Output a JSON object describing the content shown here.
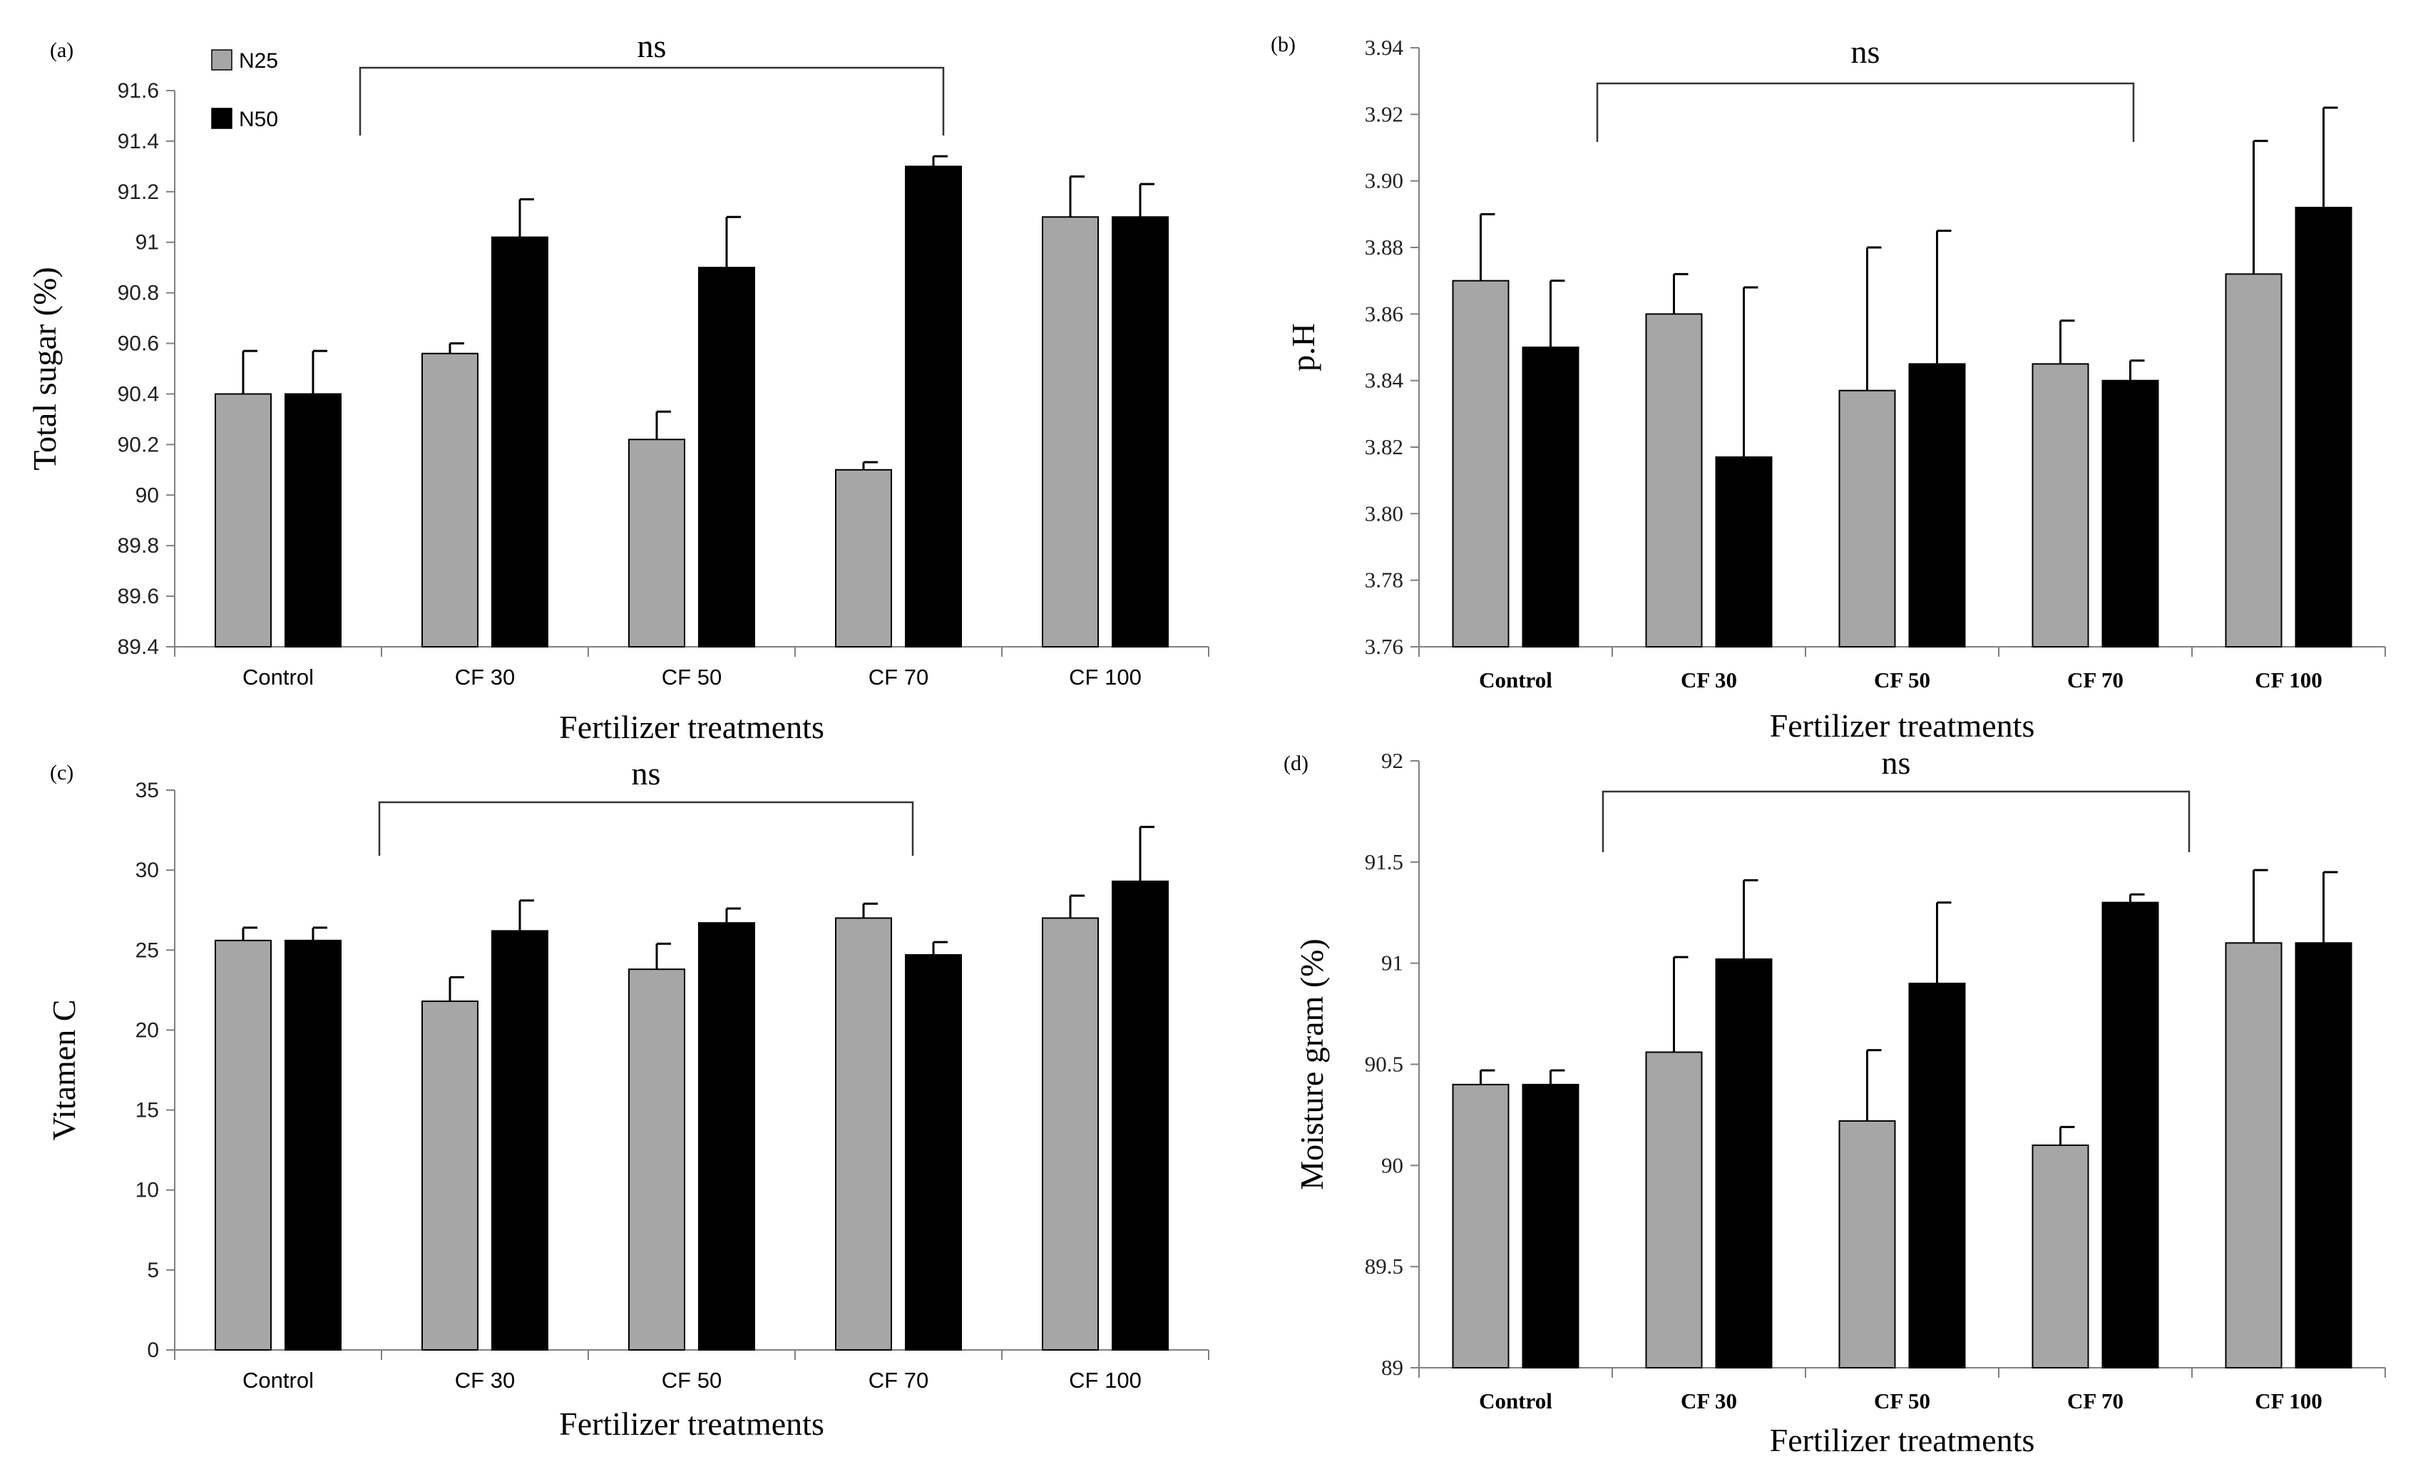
{
  "legend": {
    "entries": [
      {
        "name": "N25",
        "color": "#a6a6a6"
      },
      {
        "name": "N50",
        "color": "#000000"
      }
    ],
    "placement": "top-left of panel (a)"
  },
  "chart_data": [
    {
      "type": "bar",
      "panel_label": "(a)",
      "title": "",
      "xlabel": "Fertilizer treatments",
      "ylabel": "Total sugar (%)",
      "categories": [
        "Control",
        "CF 30",
        "CF 50",
        "CF 70",
        "CF 100"
      ],
      "ylim": [
        89.4,
        91.6
      ],
      "yticks": [
        "89.4",
        "89.6",
        "89.8",
        "90",
        "90.2",
        "90.4",
        "90.6",
        "90.8",
        "91",
        "91.2",
        "91.4",
        "91.6"
      ],
      "series": [
        {
          "name": "N25",
          "color": "#a6a6a6",
          "values": [
            90.4,
            90.56,
            90.22,
            90.1,
            91.1
          ],
          "errors": [
            0.17,
            0.04,
            0.11,
            0.03,
            0.16
          ]
        },
        {
          "name": "N50",
          "color": "#000000",
          "values": [
            90.4,
            91.02,
            90.9,
            91.3,
            91.1
          ],
          "errors": [
            0.17,
            0.15,
            0.2,
            0.04,
            0.13
          ]
        }
      ],
      "annotation": {
        "text": "ns",
        "from_category": 1,
        "to_category": 3
      }
    },
    {
      "type": "bar",
      "panel_label": "(b)",
      "title": "",
      "xlabel": "Fertilizer treatments",
      "ylabel": "p.H",
      "categories": [
        "Control",
        "CF 30",
        "CF 50",
        "CF 70",
        "CF 100"
      ],
      "ylim": [
        3.76,
        3.94
      ],
      "yticks": [
        "3.76",
        "3.78",
        "3.80",
        "3.82",
        "3.84",
        "3.86",
        "3.88",
        "3.90",
        "3.92",
        "3.94"
      ],
      "series": [
        {
          "name": "N25",
          "color": "#a6a6a6",
          "values": [
            3.87,
            3.86,
            3.837,
            3.845,
            3.872
          ],
          "errors": [
            0.02,
            0.012,
            0.043,
            0.013,
            0.04
          ]
        },
        {
          "name": "N50",
          "color": "#000000",
          "values": [
            3.85,
            3.817,
            3.845,
            3.84,
            3.892
          ],
          "errors": [
            0.02,
            0.051,
            0.04,
            0.006,
            0.03
          ]
        }
      ],
      "annotation": {
        "text": "ns",
        "from_category": 1,
        "to_category": 3
      }
    },
    {
      "type": "bar",
      "panel_label": "(c)",
      "title": "",
      "xlabel": "Fertilizer treatments",
      "ylabel": "Vitamen C",
      "categories": [
        "Control",
        "CF 30",
        "CF 50",
        "CF 70",
        "CF 100"
      ],
      "ylim": [
        0,
        35
      ],
      "yticks": [
        "0",
        "5",
        "10",
        "15",
        "20",
        "25",
        "30",
        "35"
      ],
      "series": [
        {
          "name": "N25",
          "color": "#a6a6a6",
          "values": [
            25.6,
            21.8,
            23.8,
            27.0,
            27.0
          ],
          "errors": [
            0.8,
            1.5,
            1.6,
            0.9,
            1.4
          ]
        },
        {
          "name": "N50",
          "color": "#000000",
          "values": [
            25.6,
            26.2,
            26.7,
            24.7,
            29.3
          ],
          "errors": [
            0.8,
            1.9,
            0.9,
            0.8,
            3.4
          ]
        }
      ],
      "annotation": {
        "text": "ns",
        "from_category": 1,
        "to_category": 3
      }
    },
    {
      "type": "bar",
      "panel_label": "(d)",
      "title": "",
      "xlabel": "Fertilizer treatments",
      "ylabel": "Moisture gram (%)",
      "categories": [
        "Control",
        "CF 30",
        "CF 50",
        "CF 70",
        "CF 100"
      ],
      "ylim": [
        89,
        92
      ],
      "yticks": [
        "89",
        "89.5",
        "90",
        "90.5",
        "91",
        "91.5",
        "92"
      ],
      "series": [
        {
          "name": "N25",
          "color": "#a6a6a6",
          "values": [
            90.4,
            90.56,
            90.22,
            90.1,
            91.1
          ],
          "errors": [
            0.07,
            0.47,
            0.35,
            0.09,
            0.36
          ]
        },
        {
          "name": "N50",
          "color": "#000000",
          "values": [
            90.4,
            91.02,
            90.9,
            91.3,
            91.1
          ],
          "errors": [
            0.07,
            0.39,
            0.4,
            0.04,
            0.35
          ]
        }
      ],
      "annotation": {
        "text": "ns",
        "from_category": 1,
        "to_category": 3
      }
    }
  ]
}
